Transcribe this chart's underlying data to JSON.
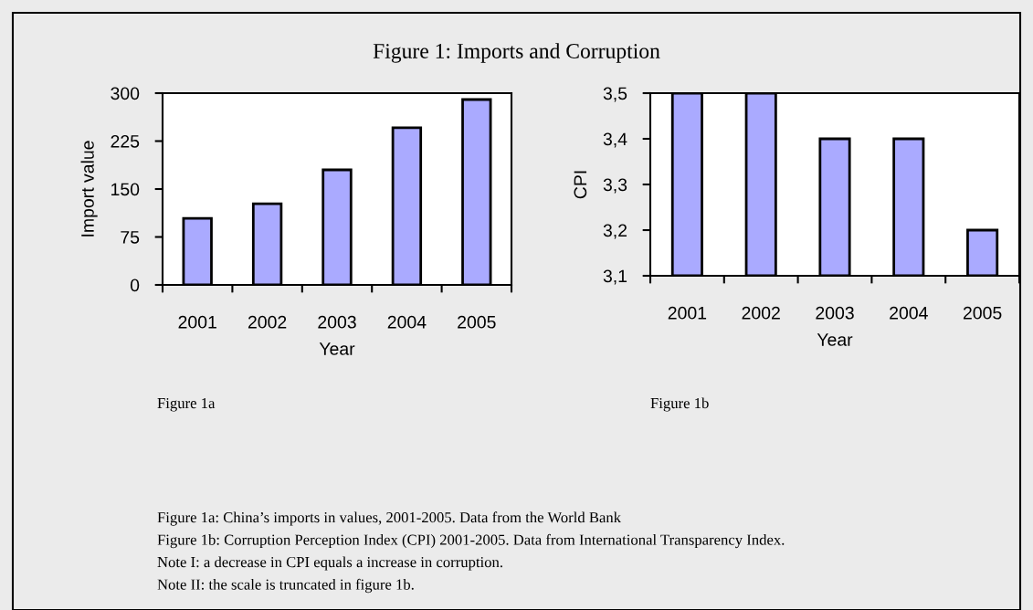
{
  "chart_data": [
    {
      "type": "bar",
      "title": "Figure 1: Imports and Corruption",
      "xlabel": "Year",
      "ylabel": "Import value",
      "categories": [
        "2001",
        "2002",
        "2003",
        "2004",
        "2005"
      ],
      "values": [
        104,
        127,
        180,
        246,
        290
      ],
      "color": "#aaaaff",
      "ylim": [
        0,
        300
      ],
      "yticks": [
        0,
        75,
        150,
        225,
        300
      ],
      "grid": false,
      "legend": false,
      "annotations": [
        "Figure 1a"
      ]
    },
    {
      "type": "bar",
      "xlabel": "Year",
      "ylabel": "CPI",
      "categories": [
        "2001",
        "2002",
        "2003",
        "2004",
        "2005"
      ],
      "values": [
        3.5,
        3.5,
        3.4,
        3.4,
        3.2
      ],
      "color": "#aaaaff",
      "ylim": [
        3.1,
        3.5
      ],
      "yticks": [
        {
          "value": 3.1,
          "label": "3,1"
        },
        {
          "value": 3.2,
          "label": "3,2"
        },
        {
          "value": 3.3,
          "label": "3,3"
        },
        {
          "value": 3.4,
          "label": "3,4"
        },
        {
          "value": 3.5,
          "label": "3,5"
        }
      ],
      "grid": false,
      "legend": false,
      "annotations": [
        "Figure 1b",
        "Figure 1a: China’s imports in values, 2001-2005. Data from the World Bank",
        "Figure 1b: Corruption Perception Index (CPI) 2001-2005. Data from International Transparency Index.",
        "Note I: a decrease in CPI equals a increase in corruption.",
        "Note II: the scale is truncated in figure 1b."
      ]
    }
  ]
}
